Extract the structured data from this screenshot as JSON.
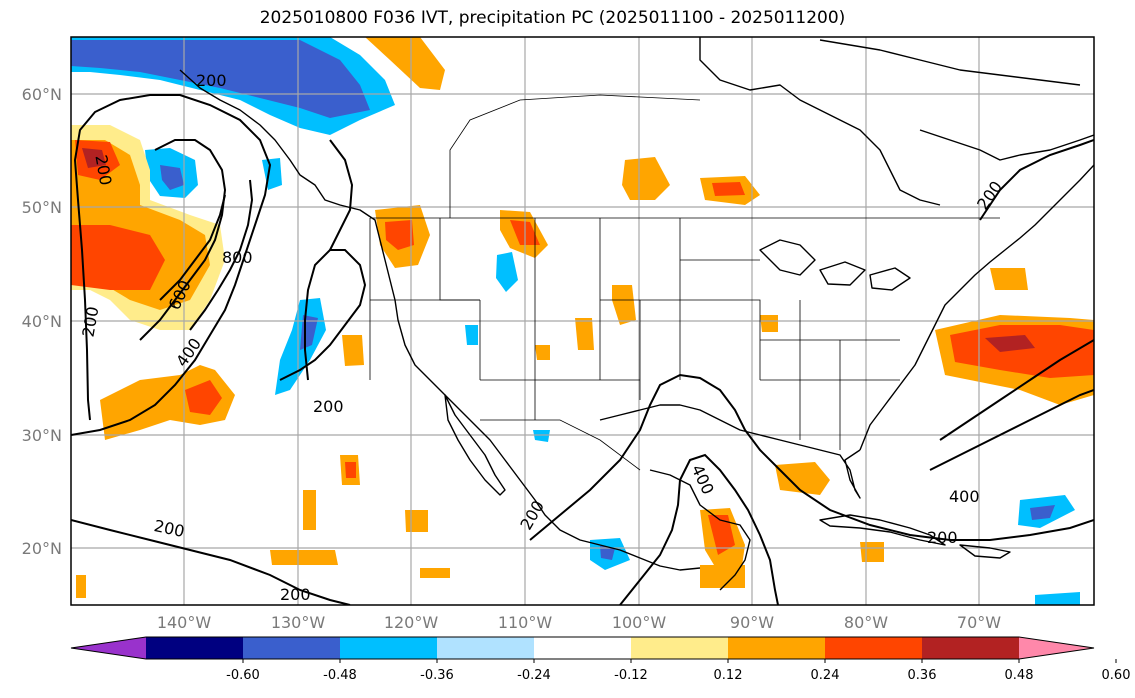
{
  "title": "2025010800 F036 IVT, precipitation PC (2025011100 - 2025011200)",
  "lat_ticks": [
    "60°N",
    "50°N",
    "40°N",
    "30°N",
    "20°N"
  ],
  "lon_ticks": [
    "140°W",
    "130°W",
    "120°W",
    "110°W",
    "100°W",
    "90°W",
    "80°W",
    "70°W"
  ],
  "colorbar": {
    "colors": [
      "#9932cc",
      "#000080",
      "#3a5fcd",
      "#00bfff",
      "#b0e2ff",
      "#ffffff",
      "#ffec8b",
      "#ffa500",
      "#ff4500",
      "#b22222",
      "#ff88aa"
    ],
    "tick_labels": [
      "-0.60",
      "-0.48",
      "-0.36",
      "-0.24",
      "-0.12",
      "0.12",
      "0.24",
      "0.36",
      "0.48",
      "0.60"
    ]
  },
  "contour_labels": [
    "200",
    "200",
    "800",
    "600",
    "400",
    "200",
    "200",
    "200",
    "200",
    "400",
    "200",
    "400",
    "200",
    "200"
  ]
}
